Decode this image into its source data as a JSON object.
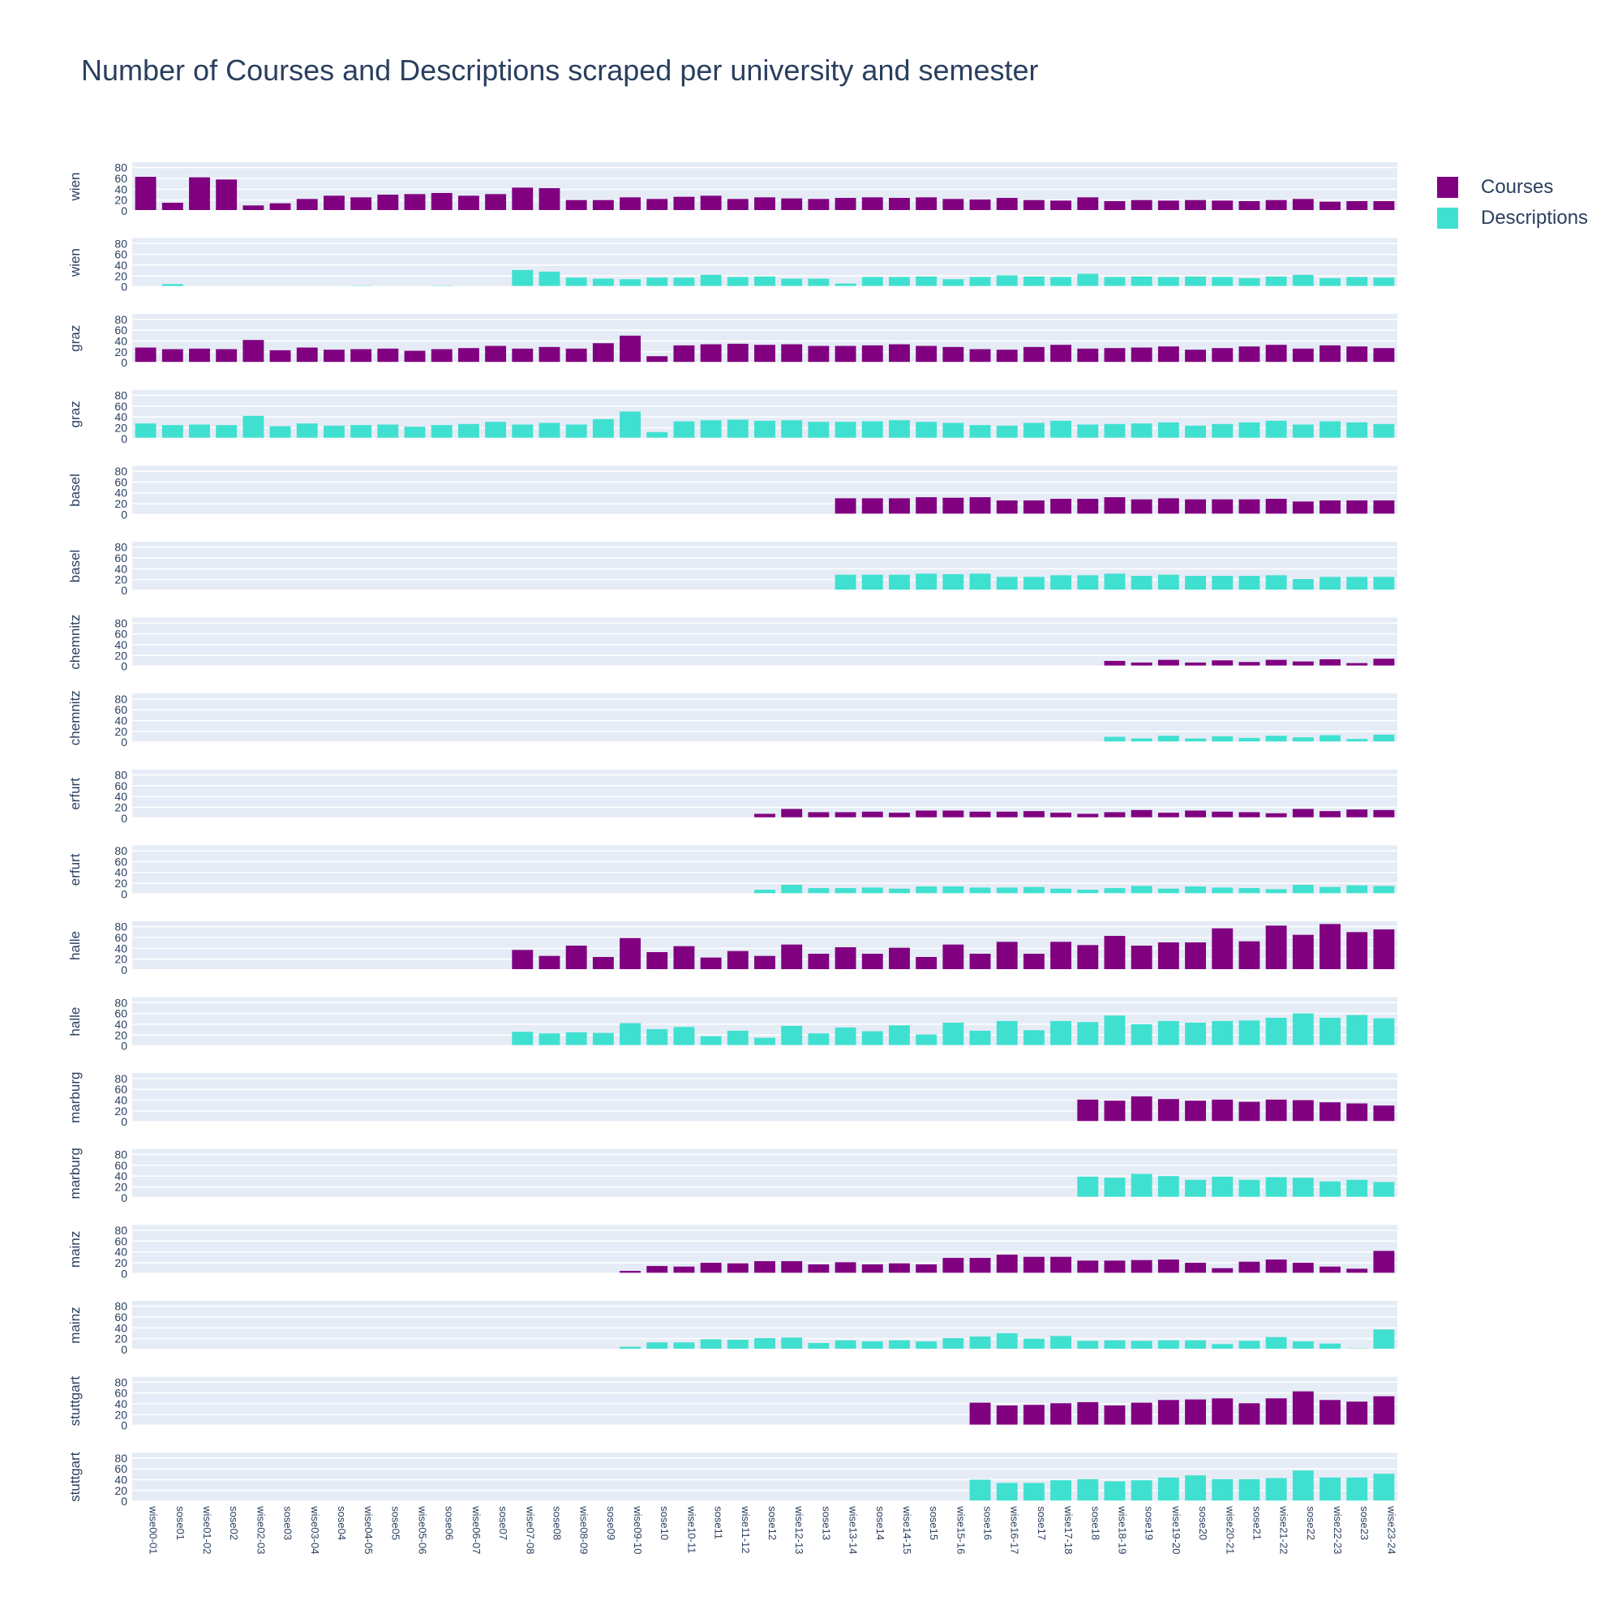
{
  "chart_data": {
    "type": "bar",
    "title": "Number of Courses and Descriptions scraped per university and semester",
    "ylim": [
      0,
      90
    ],
    "yticks": [
      0,
      20,
      40,
      60,
      80
    ],
    "grid": true,
    "legend_position": "top-right",
    "legend": [
      {
        "name": "Courses",
        "color": "#800080"
      },
      {
        "name": "Descriptions",
        "color": "#40e0d0"
      }
    ],
    "categories": [
      "wise00-01",
      "sose01",
      "wise01-02",
      "sose02",
      "wise02-03",
      "sose03",
      "wise03-04",
      "sose04",
      "wise04-05",
      "sose05",
      "wise05-06",
      "sose06",
      "wise06-07",
      "sose07",
      "wise07-08",
      "sose08",
      "wise08-09",
      "sose09",
      "wise09-10",
      "sose10",
      "wise10-11",
      "sose11",
      "wise11-12",
      "sose12",
      "wise12-13",
      "sose13",
      "wise13-14",
      "sose14",
      "wise14-15",
      "sose15",
      "wise15-16",
      "sose16",
      "wise16-17",
      "sose17",
      "wise17-18",
      "sose18",
      "wise18-19",
      "sose19",
      "wise19-20",
      "sose20",
      "wise20-21",
      "sose21",
      "wise21-22",
      "sose22",
      "wise22-23",
      "sose23",
      "wise23-24"
    ],
    "panels": [
      {
        "university": "wien",
        "series": "Courses",
        "values": [
          63,
          15,
          62,
          58,
          10,
          14,
          22,
          28,
          25,
          30,
          31,
          33,
          28,
          31,
          43,
          42,
          20,
          20,
          25,
          22,
          26,
          28,
          22,
          25,
          23,
          22,
          24,
          25,
          24,
          25,
          22,
          21,
          24,
          20,
          19,
          25,
          18,
          20,
          19,
          20,
          19,
          18,
          20,
          22,
          17,
          18,
          18
        ]
      },
      {
        "university": "wien",
        "series": "Descriptions",
        "values": [
          0,
          5,
          0,
          0,
          0,
          0,
          0,
          0,
          2,
          1,
          1,
          2,
          1,
          0,
          31,
          28,
          17,
          15,
          14,
          17,
          17,
          22,
          18,
          19,
          15,
          15,
          6,
          18,
          18,
          19,
          14,
          18,
          21,
          19,
          18,
          24,
          18,
          19,
          18,
          19,
          18,
          16,
          19,
          22,
          16,
          18,
          17
        ]
      },
      {
        "university": "graz",
        "series": "Courses",
        "values": [
          28,
          25,
          26,
          25,
          42,
          23,
          28,
          24,
          25,
          26,
          22,
          25,
          27,
          31,
          26,
          29,
          26,
          36,
          50,
          12,
          32,
          34,
          35,
          33,
          34,
          31,
          31,
          32,
          34,
          31,
          29,
          25,
          24,
          29,
          33,
          26,
          27,
          28,
          30,
          24,
          27,
          30,
          33,
          26,
          32,
          30,
          27
        ]
      },
      {
        "university": "graz",
        "series": "Descriptions",
        "values": [
          28,
          25,
          26,
          25,
          42,
          23,
          28,
          24,
          25,
          26,
          22,
          25,
          27,
          31,
          26,
          29,
          26,
          36,
          50,
          12,
          32,
          34,
          35,
          33,
          34,
          31,
          31,
          32,
          34,
          31,
          29,
          25,
          24,
          29,
          33,
          26,
          27,
          28,
          30,
          24,
          27,
          30,
          33,
          26,
          32,
          30,
          27
        ]
      },
      {
        "university": "basel",
        "series": "Courses",
        "values": [
          0,
          0,
          0,
          0,
          0,
          0,
          0,
          0,
          0,
          0,
          0,
          0,
          0,
          0,
          0,
          0,
          0,
          0,
          0,
          0,
          0,
          0,
          0,
          0,
          0,
          0,
          30,
          30,
          30,
          32,
          31,
          32,
          26,
          26,
          29,
          29,
          32,
          28,
          30,
          28,
          28,
          28,
          29,
          24,
          26,
          26,
          26
        ]
      },
      {
        "university": "basel",
        "series": "Descriptions",
        "values": [
          0,
          0,
          0,
          0,
          0,
          0,
          0,
          0,
          0,
          0,
          0,
          0,
          0,
          0,
          0,
          0,
          0,
          0,
          0,
          0,
          0,
          0,
          0,
          0,
          0,
          0,
          29,
          29,
          29,
          31,
          30,
          31,
          25,
          25,
          28,
          28,
          31,
          27,
          29,
          27,
          27,
          27,
          28,
          21,
          25,
          25,
          25
        ]
      },
      {
        "university": "chemnitz",
        "series": "Courses",
        "values": [
          0,
          0,
          0,
          0,
          0,
          0,
          0,
          0,
          0,
          0,
          0,
          0,
          0,
          0,
          0,
          0,
          0,
          0,
          0,
          0,
          0,
          0,
          0,
          0,
          0,
          0,
          0,
          0,
          0,
          0,
          0,
          0,
          0,
          0,
          0,
          0,
          10,
          7,
          12,
          7,
          11,
          8,
          12,
          9,
          13,
          6,
          14
        ]
      },
      {
        "university": "chemnitz",
        "series": "Descriptions",
        "values": [
          0,
          0,
          0,
          0,
          0,
          0,
          0,
          0,
          0,
          0,
          0,
          0,
          0,
          0,
          0,
          0,
          0,
          0,
          0,
          0,
          0,
          0,
          0,
          0,
          0,
          0,
          0,
          0,
          0,
          0,
          0,
          0,
          0,
          0,
          0,
          0,
          10,
          7,
          12,
          7,
          11,
          8,
          12,
          9,
          13,
          6,
          14
        ]
      },
      {
        "university": "erfurt",
        "series": "Courses",
        "values": [
          0,
          0,
          0,
          0,
          0,
          0,
          0,
          0,
          0,
          0,
          0,
          0,
          0,
          0,
          0,
          0,
          0,
          0,
          0,
          0,
          0,
          0,
          0,
          8,
          17,
          11,
          11,
          12,
          10,
          14,
          14,
          12,
          12,
          13,
          10,
          8,
          11,
          15,
          10,
          14,
          12,
          11,
          9,
          17,
          13,
          16,
          15
        ]
      },
      {
        "university": "erfurt",
        "series": "Descriptions",
        "values": [
          0,
          0,
          0,
          0,
          0,
          0,
          0,
          0,
          0,
          0,
          0,
          0,
          0,
          0,
          0,
          0,
          0,
          0,
          0,
          0,
          0,
          0,
          0,
          8,
          17,
          11,
          11,
          12,
          10,
          14,
          14,
          12,
          12,
          13,
          10,
          8,
          11,
          15,
          10,
          14,
          12,
          11,
          9,
          17,
          13,
          16,
          15
        ]
      },
      {
        "university": "halle",
        "series": "Courses",
        "values": [
          0,
          0,
          0,
          0,
          0,
          0,
          0,
          0,
          0,
          0,
          0,
          0,
          0,
          0,
          37,
          26,
          45,
          24,
          59,
          33,
          44,
          23,
          35,
          26,
          47,
          30,
          42,
          30,
          41,
          24,
          47,
          30,
          52,
          30,
          52,
          46,
          63,
          45,
          51,
          51,
          77,
          53,
          82,
          65,
          85,
          70,
          75
        ]
      },
      {
        "university": "halle",
        "series": "Descriptions",
        "values": [
          0,
          0,
          0,
          0,
          0,
          0,
          0,
          0,
          0,
          0,
          0,
          0,
          0,
          0,
          26,
          23,
          25,
          24,
          42,
          31,
          35,
          18,
          28,
          15,
          37,
          23,
          34,
          27,
          38,
          21,
          43,
          28,
          46,
          29,
          46,
          44,
          56,
          40,
          46,
          43,
          46,
          47,
          52,
          60,
          52,
          57,
          51
        ]
      },
      {
        "university": "marburg",
        "series": "Courses",
        "values": [
          0,
          0,
          0,
          0,
          0,
          0,
          0,
          0,
          0,
          0,
          0,
          0,
          0,
          0,
          0,
          0,
          0,
          0,
          0,
          0,
          0,
          0,
          0,
          0,
          0,
          0,
          0,
          0,
          0,
          0,
          0,
          0,
          0,
          0,
          0,
          41,
          39,
          47,
          42,
          39,
          41,
          37,
          41,
          40,
          36,
          34,
          30
        ]
      },
      {
        "university": "marburg",
        "series": "Descriptions",
        "values": [
          0,
          0,
          0,
          0,
          0,
          0,
          0,
          0,
          0,
          0,
          0,
          0,
          0,
          0,
          0,
          0,
          0,
          0,
          0,
          0,
          0,
          0,
          0,
          0,
          0,
          0,
          0,
          0,
          0,
          0,
          0,
          0,
          0,
          0,
          0,
          39,
          37,
          44,
          40,
          33,
          39,
          33,
          38,
          37,
          30,
          33,
          29
        ]
      },
      {
        "university": "mainz",
        "series": "Courses",
        "values": [
          0,
          0,
          0,
          0,
          0,
          0,
          0,
          0,
          0,
          0,
          0,
          0,
          0,
          0,
          0,
          0,
          0,
          0,
          5,
          14,
          13,
          20,
          19,
          23,
          23,
          17,
          21,
          17,
          19,
          17,
          29,
          29,
          35,
          31,
          31,
          24,
          24,
          25,
          26,
          20,
          10,
          22,
          26,
          20,
          13,
          9,
          42
        ]
      },
      {
        "university": "mainz",
        "series": "Descriptions",
        "values": [
          0,
          0,
          0,
          0,
          0,
          0,
          0,
          0,
          0,
          0,
          0,
          0,
          0,
          0,
          0,
          0,
          0,
          0,
          5,
          13,
          13,
          19,
          18,
          21,
          22,
          12,
          17,
          15,
          17,
          15,
          21,
          24,
          30,
          20,
          25,
          16,
          17,
          16,
          17,
          17,
          10,
          16,
          23,
          15,
          11,
          2,
          37
        ]
      },
      {
        "university": "stuttgart",
        "series": "Courses",
        "values": [
          0,
          0,
          0,
          0,
          0,
          0,
          0,
          0,
          0,
          0,
          0,
          0,
          0,
          0,
          0,
          0,
          0,
          0,
          0,
          0,
          0,
          0,
          0,
          0,
          0,
          0,
          0,
          0,
          0,
          0,
          0,
          42,
          37,
          38,
          41,
          43,
          37,
          42,
          47,
          48,
          50,
          41,
          50,
          63,
          47,
          44,
          54
        ]
      },
      {
        "university": "stuttgart",
        "series": "Descriptions",
        "values": [
          0,
          0,
          0,
          0,
          0,
          0,
          0,
          0,
          0,
          0,
          0,
          0,
          0,
          0,
          0,
          0,
          0,
          0,
          0,
          0,
          0,
          0,
          0,
          0,
          0,
          0,
          0,
          0,
          0,
          0,
          0,
          40,
          34,
          34,
          39,
          41,
          37,
          39,
          44,
          48,
          41,
          41,
          43,
          57,
          44,
          44,
          51
        ]
      }
    ]
  }
}
